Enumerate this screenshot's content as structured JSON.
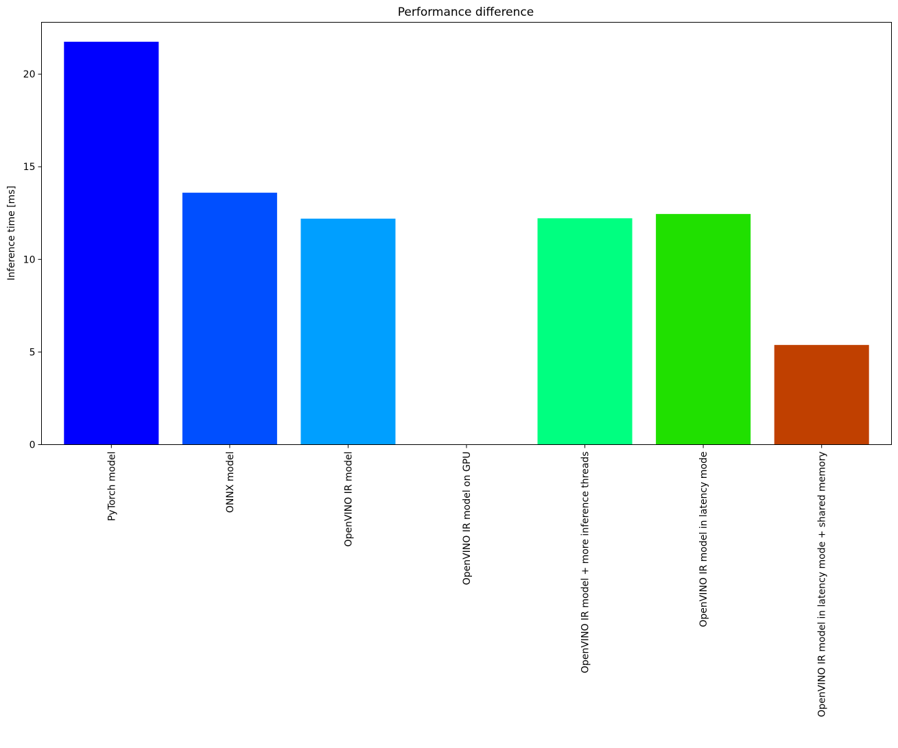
{
  "chart_data": {
    "type": "bar",
    "title": "Performance difference",
    "xlabel": "",
    "ylabel": "Inference time [ms]",
    "ylim": [
      0,
      22.8
    ],
    "yticks": [
      0,
      5,
      10,
      15,
      20
    ],
    "grid": false,
    "legend": "none",
    "categories": [
      "PyTorch model",
      "ONNX model",
      "OpenVINO IR model",
      "OpenVINO IR model on GPU",
      "OpenVINO IR model + more inference threads",
      "OpenVINO IR model in latency mode",
      "OpenVINO IR model in latency mode + shared memory"
    ],
    "values": [
      21.75,
      13.6,
      12.2,
      0,
      12.22,
      12.45,
      5.38
    ],
    "colors": [
      "#0000ff",
      "#004fff",
      "#009fff",
      "#00efb0",
      "#00ff80",
      "#20e000",
      "#c04000"
    ]
  }
}
